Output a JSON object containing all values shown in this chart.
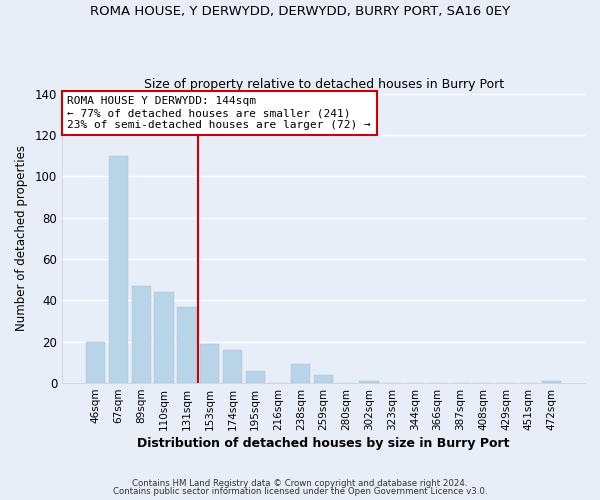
{
  "title": "ROMA HOUSE, Y DERWYDD, DERWYDD, BURRY PORT, SA16 0EY",
  "subtitle": "Size of property relative to detached houses in Burry Port",
  "xlabel": "Distribution of detached houses by size in Burry Port",
  "ylabel": "Number of detached properties",
  "bar_color": "#b8d4e8",
  "bar_edge_color": "#b8d4e8",
  "categories": [
    "46sqm",
    "67sqm",
    "89sqm",
    "110sqm",
    "131sqm",
    "153sqm",
    "174sqm",
    "195sqm",
    "216sqm",
    "238sqm",
    "259sqm",
    "280sqm",
    "302sqm",
    "323sqm",
    "344sqm",
    "366sqm",
    "387sqm",
    "408sqm",
    "429sqm",
    "451sqm",
    "472sqm"
  ],
  "values": [
    20,
    110,
    47,
    44,
    37,
    19,
    16,
    6,
    0,
    9,
    4,
    0,
    1,
    0,
    0,
    0,
    0,
    0,
    0,
    0,
    1
  ],
  "ylim": [
    0,
    140
  ],
  "yticks": [
    0,
    20,
    40,
    60,
    80,
    100,
    120,
    140
  ],
  "vline_x": 4.5,
  "vline_color": "#cc0000",
  "annotation_line1": "ROMA HOUSE Y DERWYDD: 144sqm",
  "annotation_line2": "← 77% of detached houses are smaller (241)",
  "annotation_line3": "23% of semi-detached houses are larger (72) →",
  "annotation_box_color": "#ffffff",
  "annotation_box_edge": "#cc0000",
  "footer1": "Contains HM Land Registry data © Crown copyright and database right 2024.",
  "footer2": "Contains public sector information licensed under the Open Government Licence v3.0.",
  "background_color": "#e8eef8",
  "grid_color": "#ffffff"
}
